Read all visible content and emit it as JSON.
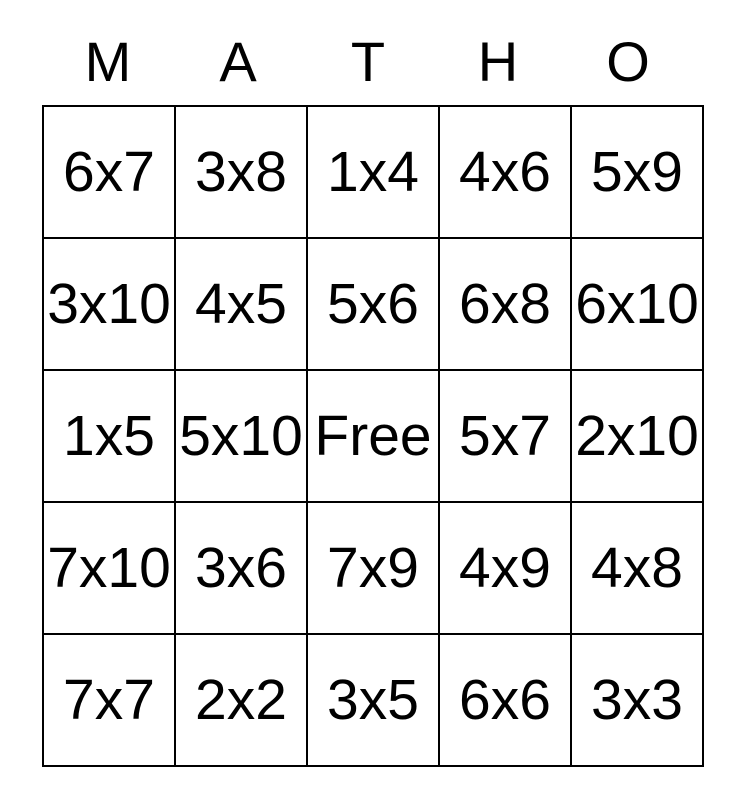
{
  "title": {
    "name": "MATHO",
    "letters": [
      "M",
      "A",
      "T",
      "H",
      "O"
    ]
  },
  "grid": {
    "rows": [
      [
        "6x7",
        "3x8",
        "1x4",
        "4x6",
        "5x9"
      ],
      [
        "3x10",
        "4x5",
        "5x6",
        "6x8",
        "6x10"
      ],
      [
        "1x5",
        "5x10",
        "Free",
        "5x7",
        "2x10"
      ],
      [
        "7x10",
        "3x6",
        "7x9",
        "4x9",
        "4x8"
      ],
      [
        "7x7",
        "2x2",
        "3x5",
        "6x6",
        "3x3"
      ]
    ],
    "free_cell_label": "Free"
  },
  "colors": {
    "background": "#ffffff",
    "text": "#000000",
    "grid_border": "#000000"
  }
}
